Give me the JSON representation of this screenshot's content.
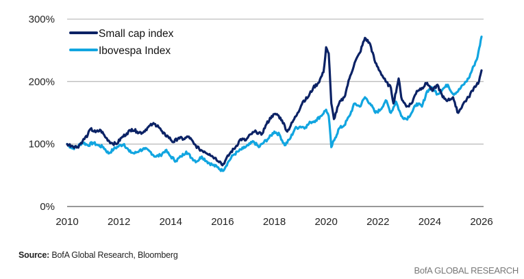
{
  "chart_data": {
    "type": "line",
    "title": "",
    "xlabel": "",
    "ylabel": "",
    "xlim": [
      2010,
      2026
    ],
    "ylim": [
      0,
      300
    ],
    "y_ticks": [
      0,
      100,
      200,
      300
    ],
    "y_tick_labels": [
      "0%",
      "100%",
      "200%",
      "300%"
    ],
    "x_ticks": [
      2010,
      2012,
      2014,
      2016,
      2018,
      2020,
      2022,
      2024,
      2026
    ],
    "x_tick_labels": [
      "2010",
      "2012",
      "2014",
      "2016",
      "2018",
      "2020",
      "2022",
      "2024",
      "2026"
    ],
    "grid": "horizontal",
    "legend_position": "top-left",
    "series": [
      {
        "name": "Small cap index",
        "color": "#0b2265",
        "points": [
          [
            2010.0,
            100
          ],
          [
            2010.2,
            97
          ],
          [
            2010.4,
            95
          ],
          [
            2010.6,
            105
          ],
          [
            2010.8,
            115
          ],
          [
            2010.9,
            124
          ],
          [
            2011.1,
            119
          ],
          [
            2011.3,
            122
          ],
          [
            2011.5,
            110
          ],
          [
            2011.7,
            102
          ],
          [
            2011.9,
            100
          ],
          [
            2012.1,
            110
          ],
          [
            2012.3,
            117
          ],
          [
            2012.5,
            124
          ],
          [
            2012.7,
            120
          ],
          [
            2012.9,
            118
          ],
          [
            2013.1,
            126
          ],
          [
            2013.3,
            132
          ],
          [
            2013.5,
            130
          ],
          [
            2013.7,
            117
          ],
          [
            2013.9,
            112
          ],
          [
            2014.1,
            103
          ],
          [
            2014.3,
            110
          ],
          [
            2014.5,
            108
          ],
          [
            2014.7,
            112
          ],
          [
            2014.9,
            100
          ],
          [
            2015.1,
            92
          ],
          [
            2015.3,
            88
          ],
          [
            2015.5,
            84
          ],
          [
            2015.7,
            78
          ],
          [
            2015.9,
            72
          ],
          [
            2016.0,
            66
          ],
          [
            2016.1,
            73
          ],
          [
            2016.3,
            86
          ],
          [
            2016.5,
            95
          ],
          [
            2016.7,
            108
          ],
          [
            2016.9,
            106
          ],
          [
            2017.1,
            116
          ],
          [
            2017.3,
            120
          ],
          [
            2017.5,
            115
          ],
          [
            2017.7,
            132
          ],
          [
            2017.9,
            145
          ],
          [
            2018.1,
            148
          ],
          [
            2018.3,
            138
          ],
          [
            2018.5,
            120
          ],
          [
            2018.7,
            135
          ],
          [
            2018.9,
            150
          ],
          [
            2019.1,
            168
          ],
          [
            2019.3,
            175
          ],
          [
            2019.5,
            190
          ],
          [
            2019.7,
            198
          ],
          [
            2019.9,
            215
          ],
          [
            2020.0,
            255
          ],
          [
            2020.1,
            245
          ],
          [
            2020.2,
            165
          ],
          [
            2020.3,
            140
          ],
          [
            2020.5,
            165
          ],
          [
            2020.7,
            175
          ],
          [
            2020.9,
            205
          ],
          [
            2021.1,
            230
          ],
          [
            2021.3,
            246
          ],
          [
            2021.5,
            270
          ],
          [
            2021.7,
            260
          ],
          [
            2021.9,
            230
          ],
          [
            2022.1,
            215
          ],
          [
            2022.3,
            200
          ],
          [
            2022.5,
            190
          ],
          [
            2022.6,
            165
          ],
          [
            2022.8,
            205
          ],
          [
            2022.9,
            175
          ],
          [
            2023.1,
            160
          ],
          [
            2023.3,
            165
          ],
          [
            2023.5,
            185
          ],
          [
            2023.7,
            190
          ],
          [
            2023.9,
            198
          ],
          [
            2024.1,
            185
          ],
          [
            2024.3,
            195
          ],
          [
            2024.5,
            175
          ],
          [
            2024.7,
            170
          ],
          [
            2024.9,
            175
          ],
          [
            2025.0,
            160
          ],
          [
            2025.1,
            150
          ],
          [
            2025.3,
            165
          ],
          [
            2025.5,
            175
          ],
          [
            2025.7,
            190
          ],
          [
            2025.9,
            200
          ],
          [
            2026.0,
            218
          ]
        ]
      },
      {
        "name": "Ibovespa Index",
        "color": "#11a5e0",
        "points": [
          [
            2010.0,
            100
          ],
          [
            2010.2,
            93
          ],
          [
            2010.4,
            96
          ],
          [
            2010.6,
            103
          ],
          [
            2010.8,
            98
          ],
          [
            2011.0,
            102
          ],
          [
            2011.2,
            98
          ],
          [
            2011.4,
            95
          ],
          [
            2011.6,
            85
          ],
          [
            2011.8,
            92
          ],
          [
            2012.0,
            97
          ],
          [
            2012.2,
            100
          ],
          [
            2012.4,
            88
          ],
          [
            2012.6,
            85
          ],
          [
            2012.8,
            90
          ],
          [
            2013.0,
            92
          ],
          [
            2013.2,
            88
          ],
          [
            2013.4,
            80
          ],
          [
            2013.6,
            82
          ],
          [
            2013.8,
            90
          ],
          [
            2014.0,
            80
          ],
          [
            2014.2,
            73
          ],
          [
            2014.4,
            80
          ],
          [
            2014.6,
            88
          ],
          [
            2014.8,
            78
          ],
          [
            2015.0,
            72
          ],
          [
            2015.2,
            80
          ],
          [
            2015.4,
            72
          ],
          [
            2015.6,
            67
          ],
          [
            2015.8,
            63
          ],
          [
            2016.0,
            57
          ],
          [
            2016.2,
            70
          ],
          [
            2016.4,
            82
          ],
          [
            2016.6,
            88
          ],
          [
            2016.8,
            93
          ],
          [
            2017.0,
            98
          ],
          [
            2017.2,
            104
          ],
          [
            2017.4,
            95
          ],
          [
            2017.6,
            103
          ],
          [
            2017.8,
            110
          ],
          [
            2018.0,
            120
          ],
          [
            2018.2,
            115
          ],
          [
            2018.4,
            98
          ],
          [
            2018.6,
            108
          ],
          [
            2018.8,
            125
          ],
          [
            2019.0,
            128
          ],
          [
            2019.2,
            127
          ],
          [
            2019.4,
            135
          ],
          [
            2019.6,
            138
          ],
          [
            2019.8,
            145
          ],
          [
            2020.0,
            155
          ],
          [
            2020.1,
            145
          ],
          [
            2020.2,
            95
          ],
          [
            2020.35,
            110
          ],
          [
            2020.5,
            125
          ],
          [
            2020.7,
            130
          ],
          [
            2020.9,
            145
          ],
          [
            2021.1,
            165
          ],
          [
            2021.3,
            160
          ],
          [
            2021.5,
            175
          ],
          [
            2021.7,
            165
          ],
          [
            2021.9,
            150
          ],
          [
            2022.1,
            155
          ],
          [
            2022.3,
            170
          ],
          [
            2022.5,
            150
          ],
          [
            2022.7,
            168
          ],
          [
            2022.9,
            145
          ],
          [
            2023.1,
            140
          ],
          [
            2023.3,
            150
          ],
          [
            2023.5,
            165
          ],
          [
            2023.7,
            160
          ],
          [
            2023.9,
            185
          ],
          [
            2024.1,
            190
          ],
          [
            2024.3,
            180
          ],
          [
            2024.5,
            188
          ],
          [
            2024.7,
            195
          ],
          [
            2024.9,
            180
          ],
          [
            2025.1,
            185
          ],
          [
            2025.3,
            195
          ],
          [
            2025.5,
            205
          ],
          [
            2025.7,
            225
          ],
          [
            2025.85,
            240
          ],
          [
            2026.0,
            272
          ]
        ]
      }
    ]
  },
  "source": {
    "label": "Source:",
    "text": " BofA Global Research, Bloomberg"
  },
  "footer": "BofA GLOBAL RESEARCH"
}
